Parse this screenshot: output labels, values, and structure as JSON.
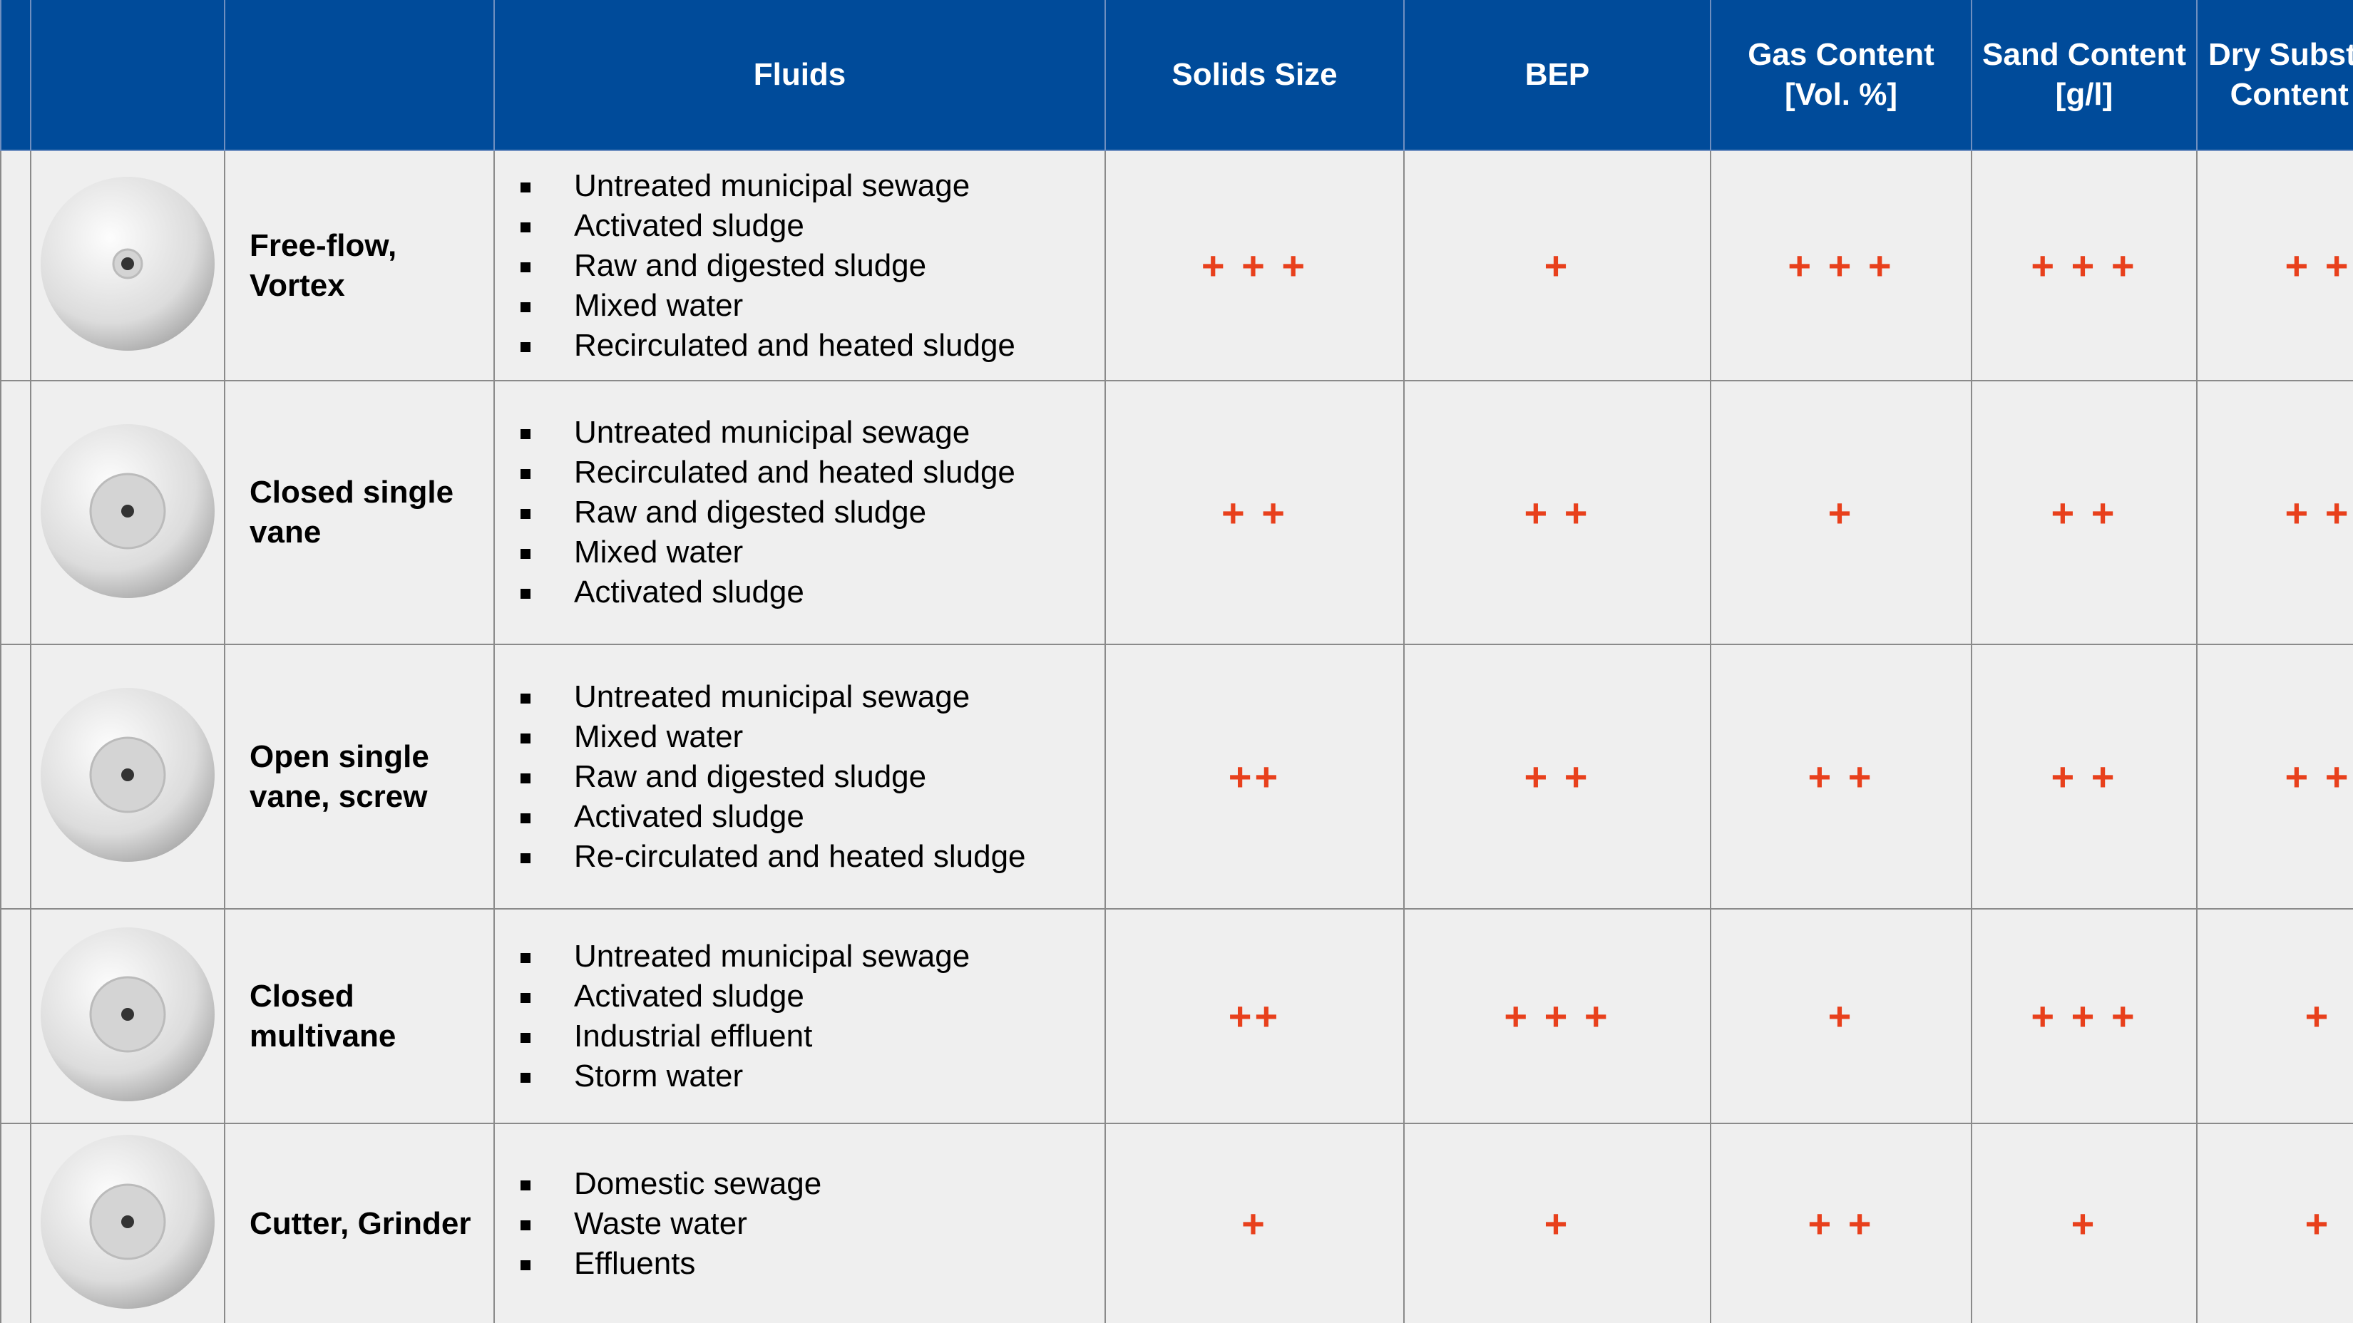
{
  "header": {
    "columns": [
      "Fluids",
      "Solids Size",
      "BEP",
      "Gas Content [Vol. %]",
      "Sand Content [g/l]",
      "Dry Substance Content [%]"
    ]
  },
  "rows": [
    {
      "name": "Free-flow, Vortex",
      "fluids": [
        "Untreated municipal sewage",
        "Activated sludge",
        "Raw and digested sludge",
        "Mixed water",
        "Recirculated and heated sludge"
      ],
      "ratings": [
        "+ + +",
        "+",
        "+ + +",
        "+ + +",
        "+ +"
      ]
    },
    {
      "name": "Closed single vane",
      "fluids": [
        "Untreated municipal sewage",
        "Recirculated and heated sludge",
        "Raw and digested sludge",
        "Mixed water",
        "Activated sludge"
      ],
      "ratings": [
        "+ +",
        "+ +",
        "+",
        "+ +",
        "+ +"
      ]
    },
    {
      "name": "Open single vane, screw",
      "fluids": [
        "Untreated municipal sewage",
        "Mixed water",
        "Raw and digested sludge",
        "Activated sludge",
        "Re-circulated and heated sludge"
      ],
      "ratings": [
        "++",
        "+ +",
        "+ +",
        "+ +",
        "+ +"
      ]
    },
    {
      "name": "Closed multivane",
      "fluids": [
        "Untreated municipal sewage",
        "Activated sludge",
        "Industrial effluent",
        "Storm water"
      ],
      "ratings": [
        "++",
        "+ + +",
        "+",
        "+ + +",
        "+"
      ]
    },
    {
      "name": "Cutter, Grinder",
      "fluids": [
        "Domestic sewage",
        "Waste water",
        "Effluents"
      ],
      "ratings": [
        "+",
        "+",
        "+ +",
        "+",
        "+"
      ]
    }
  ]
}
